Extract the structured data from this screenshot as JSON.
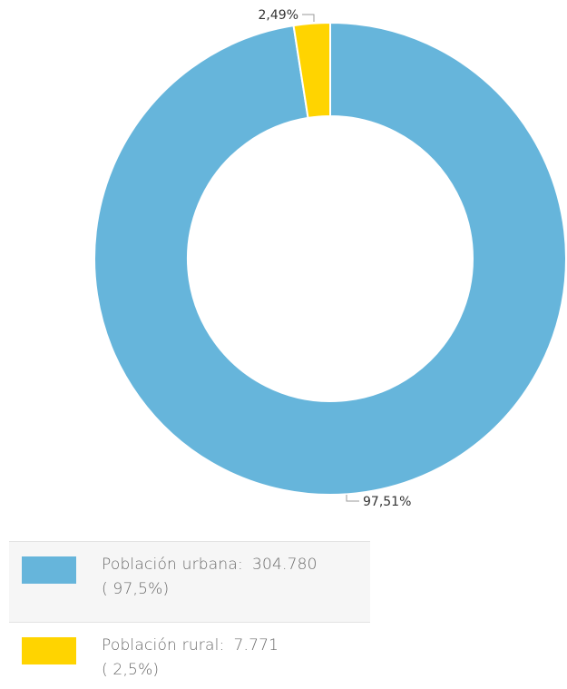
{
  "chart_data": {
    "type": "pie",
    "donut": true,
    "title": "",
    "slices": [
      {
        "name": "Población urbana",
        "value": 304780,
        "value_label": "304.780",
        "percent_label": "97,51%",
        "legend_percent": "( 97,5%)",
        "color": "#66b5db"
      },
      {
        "name": "Población rural",
        "value": 7771,
        "value_label": "7.771",
        "percent_label": "2,49%",
        "legend_percent": "( 2,5%)",
        "color": "#ffd400"
      }
    ],
    "legend_placement": "bottom-left"
  }
}
